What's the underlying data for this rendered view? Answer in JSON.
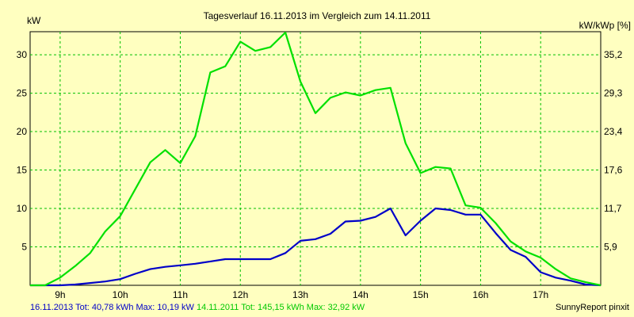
{
  "chart_data": {
    "type": "line",
    "title": "Tagesverlauf 16.11.2013 im Vergleich zum 14.11.2011",
    "ylabel_left": "kW",
    "ylabel_right": "kW/kWp [%]",
    "xlim": [
      8.5,
      18.0
    ],
    "ylim": [
      0,
      33
    ],
    "x_ticks": [
      {
        "value": 9,
        "label": "9h"
      },
      {
        "value": 10,
        "label": "10h"
      },
      {
        "value": 11,
        "label": "11h"
      },
      {
        "value": 12,
        "label": "12h"
      },
      {
        "value": 13,
        "label": "13h"
      },
      {
        "value": 14,
        "label": "14h"
      },
      {
        "value": 15,
        "label": "15h"
      },
      {
        "value": 16,
        "label": "16h"
      },
      {
        "value": 17,
        "label": "17h"
      }
    ],
    "y_ticks_left": [
      {
        "value": 5,
        "label": "5"
      },
      {
        "value": 10,
        "label": "10"
      },
      {
        "value": 15,
        "label": "15"
      },
      {
        "value": 20,
        "label": "20"
      },
      {
        "value": 25,
        "label": "25"
      },
      {
        "value": 30,
        "label": "30"
      }
    ],
    "y_ticks_right": [
      {
        "value": 5,
        "label": "5,9"
      },
      {
        "value": 10,
        "label": "11,7"
      },
      {
        "value": 15,
        "label": "17,6"
      },
      {
        "value": 20,
        "label": "23,4"
      },
      {
        "value": 25,
        "label": "29,3"
      },
      {
        "value": 30,
        "label": "35,2"
      }
    ],
    "grid": true,
    "series": [
      {
        "name": "16.11.2013",
        "color": "#0000c8",
        "points": [
          [
            8.5,
            0.0
          ],
          [
            8.75,
            0.0
          ],
          [
            9.0,
            0.0
          ],
          [
            9.25,
            0.1
          ],
          [
            9.5,
            0.3
          ],
          [
            9.75,
            0.5
          ],
          [
            10.0,
            0.8
          ],
          [
            10.25,
            1.5
          ],
          [
            10.5,
            2.1
          ],
          [
            10.75,
            2.4
          ],
          [
            11.0,
            2.6
          ],
          [
            11.25,
            2.8
          ],
          [
            11.5,
            3.1
          ],
          [
            11.75,
            3.4
          ],
          [
            12.0,
            3.4
          ],
          [
            12.25,
            3.4
          ],
          [
            12.5,
            3.4
          ],
          [
            12.75,
            4.2
          ],
          [
            13.0,
            5.8
          ],
          [
            13.25,
            6.0
          ],
          [
            13.5,
            6.7
          ],
          [
            13.75,
            8.3
          ],
          [
            14.0,
            8.4
          ],
          [
            14.25,
            8.9
          ],
          [
            14.5,
            10.0
          ],
          [
            14.75,
            6.5
          ],
          [
            15.0,
            8.4
          ],
          [
            15.25,
            10.0
          ],
          [
            15.5,
            9.8
          ],
          [
            15.75,
            9.2
          ],
          [
            16.0,
            9.2
          ],
          [
            16.25,
            6.8
          ],
          [
            16.5,
            4.6
          ],
          [
            16.75,
            3.7
          ],
          [
            17.0,
            1.7
          ],
          [
            17.25,
            1.0
          ],
          [
            17.5,
            0.6
          ],
          [
            17.75,
            0.1
          ],
          [
            18.0,
            0.0
          ]
        ]
      },
      {
        "name": "14.11.2011",
        "color": "#00e000",
        "points": [
          [
            8.5,
            0.0
          ],
          [
            8.75,
            0.0
          ],
          [
            9.0,
            1.0
          ],
          [
            9.25,
            2.5
          ],
          [
            9.5,
            4.2
          ],
          [
            9.75,
            7.0
          ],
          [
            10.0,
            9.0
          ],
          [
            10.25,
            12.5
          ],
          [
            10.5,
            16.0
          ],
          [
            10.75,
            17.6
          ],
          [
            11.0,
            15.9
          ],
          [
            11.25,
            19.4
          ],
          [
            11.5,
            27.7
          ],
          [
            11.75,
            28.5
          ],
          [
            12.0,
            31.7
          ],
          [
            12.25,
            30.5
          ],
          [
            12.5,
            31.0
          ],
          [
            12.75,
            32.9
          ],
          [
            13.0,
            26.5
          ],
          [
            13.25,
            22.4
          ],
          [
            13.5,
            24.4
          ],
          [
            13.75,
            25.1
          ],
          [
            14.0,
            24.7
          ],
          [
            14.25,
            25.4
          ],
          [
            14.5,
            25.7
          ],
          [
            14.75,
            18.5
          ],
          [
            15.0,
            14.6
          ],
          [
            15.25,
            15.4
          ],
          [
            15.5,
            15.2
          ],
          [
            15.75,
            10.4
          ],
          [
            16.0,
            10.1
          ],
          [
            16.25,
            8.1
          ],
          [
            16.5,
            5.7
          ],
          [
            16.75,
            4.4
          ],
          [
            17.0,
            3.6
          ],
          [
            17.25,
            2.1
          ],
          [
            17.5,
            0.9
          ],
          [
            17.75,
            0.4
          ],
          [
            18.0,
            0.0
          ]
        ]
      }
    ]
  },
  "footer": {
    "series1_text": "16.11.2013 Tot: 40,78 kWh Max: 10,19 kW",
    "series2_text": "14.11.2011 Tot: 145,15 kWh Max: 32,92 kW",
    "credit": "SunnyReport pinxit"
  }
}
